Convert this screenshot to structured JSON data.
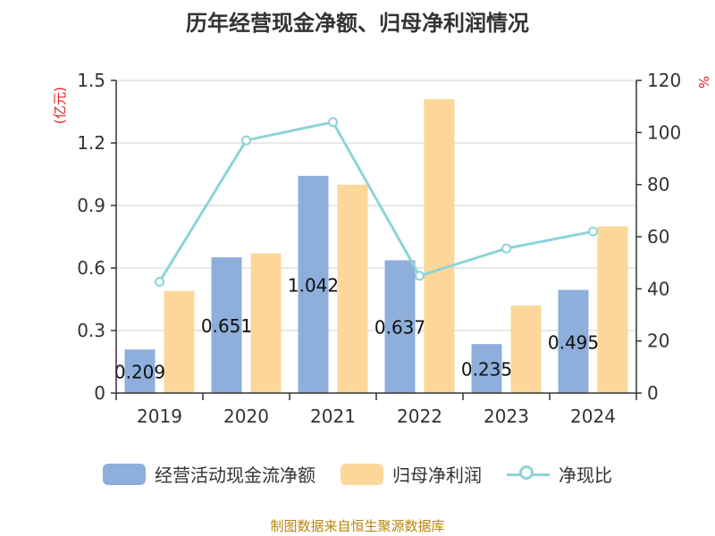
{
  "chart_data": {
    "type": "bar",
    "title": "历年经营现金净额、归母净利润情况",
    "categories": [
      "2019",
      "2020",
      "2021",
      "2022",
      "2023",
      "2024"
    ],
    "series": [
      {
        "name": "经营活动现金流净额",
        "type": "bar",
        "axis": "left",
        "color": "#8eaedb",
        "values": [
          0.209,
          0.651,
          1.042,
          0.637,
          0.235,
          0.495
        ]
      },
      {
        "name": "归母净利润",
        "type": "bar",
        "axis": "left",
        "color": "#fdd79a",
        "values": [
          0.49,
          0.67,
          1.0,
          1.41,
          0.42,
          0.8
        ]
      },
      {
        "name": "净现比",
        "type": "line",
        "axis": "right",
        "color": "#8dd3d8",
        "values": [
          42.7,
          97,
          104,
          45,
          55.5,
          62
        ]
      }
    ],
    "data_labels": [
      "0.209",
      "0.651",
      "1.042",
      "0.637",
      "0.235",
      "0.495"
    ],
    "y_left": {
      "label": "(亿元)",
      "ylim": [
        0,
        1.5
      ],
      "ticks": [
        "0",
        "0.3",
        "0.6",
        "0.9",
        "1.2",
        "1.5"
      ]
    },
    "y_right": {
      "label": "%",
      "ylim": [
        0,
        120
      ],
      "ticks": [
        "0",
        "20",
        "40",
        "60",
        "80",
        "100",
        "120"
      ]
    },
    "grid": true,
    "legend_position": "bottom",
    "source": "制图数据来自恒生聚源数据库"
  }
}
